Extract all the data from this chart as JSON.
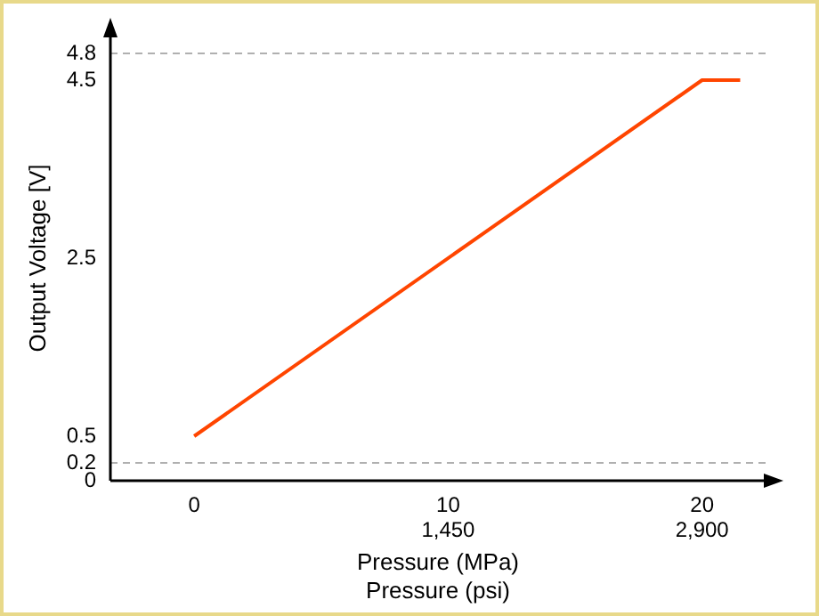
{
  "chart_data": {
    "type": "line",
    "xlabel": "Pressure (MPa)",
    "x2label": "Pressure (psi)",
    "ylabel": "Output Voltage [V]",
    "x": [
      0,
      20,
      21.5
    ],
    "series": [
      {
        "color": "#ff4500",
        "values": [
          0.5,
          4.5,
          4.5
        ]
      }
    ],
    "xlim": [
      -3.3,
      22.5
    ],
    "xticks": [
      0,
      10,
      20
    ],
    "x2lim": [
      -478.5,
      3262.5
    ],
    "x2ticks": [
      {
        "value": 1450,
        "label": "1,450"
      },
      {
        "value": 2900,
        "label": "2,900"
      }
    ],
    "ylim": [
      0,
      5
    ],
    "yticks": [
      0,
      0.2,
      0.5,
      2.5,
      4.5,
      4.8
    ],
    "ref_lines": [
      {
        "axis": "y",
        "value": 4.8,
        "color": "#b0b0b0",
        "line_style": "dashed"
      },
      {
        "axis": "y",
        "value": 0.2,
        "color": "#b0b0b0",
        "line_style": "dashed"
      }
    ],
    "grid": false,
    "legend": false,
    "marker": "none",
    "line_style": "solid"
  }
}
